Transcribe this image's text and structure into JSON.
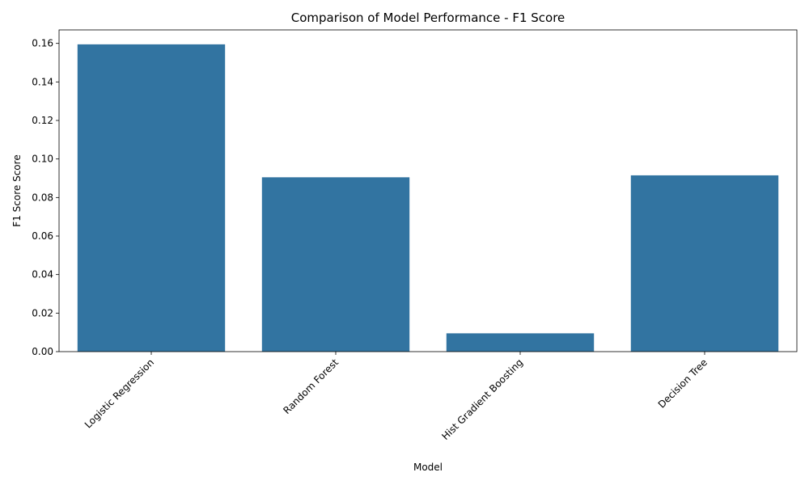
{
  "chart_data": {
    "type": "bar",
    "title": "Comparison of Model Performance - F1 Score",
    "xlabel": "Model",
    "ylabel": "F1 Score Score",
    "categories": [
      "Logistic Regression",
      "Random Forest",
      "Hist Gradient Boosting",
      "Decision Tree"
    ],
    "values": [
      0.1595,
      0.0905,
      0.0095,
      0.0915
    ],
    "ylim": [
      0,
      0.167
    ],
    "yticks": [
      0.0,
      0.02,
      0.04,
      0.06,
      0.08,
      0.1,
      0.12,
      0.14,
      0.16
    ],
    "ytick_labels": [
      "0.00",
      "0.02",
      "0.04",
      "0.06",
      "0.08",
      "0.10",
      "0.12",
      "0.14",
      "0.16"
    ],
    "grid": false,
    "bar_color": "#3274a1"
  }
}
